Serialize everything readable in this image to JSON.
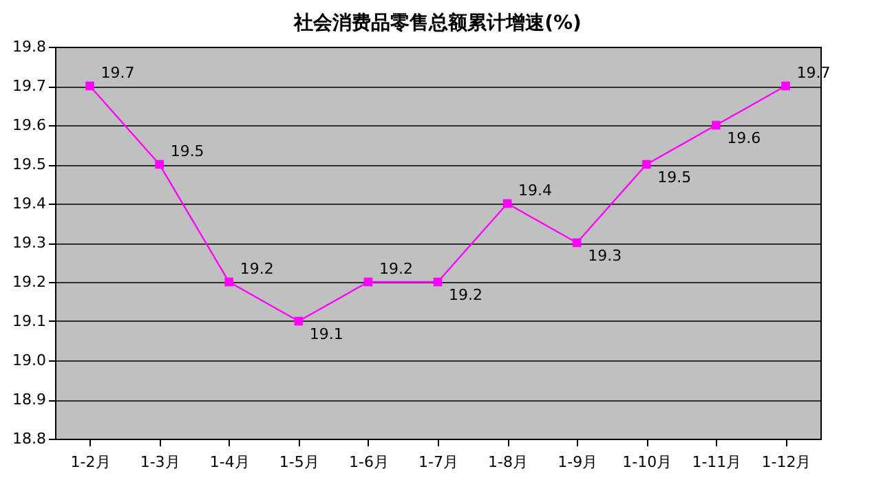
{
  "chart_data": {
    "type": "line",
    "title": "社会消费品零售总额累计增速(%)",
    "categories": [
      "1-2月",
      "1-3月",
      "1-4月",
      "1-5月",
      "1-6月",
      "1-7月",
      "1-8月",
      "1-9月",
      "1-10月",
      "1-11月",
      "1-12月"
    ],
    "series": [
      {
        "color": "#ff00ff",
        "values": [
          19.7,
          19.5,
          19.2,
          19.1,
          19.2,
          19.2,
          19.4,
          19.3,
          19.5,
          19.6,
          19.7
        ]
      }
    ],
    "ylim": [
      18.8,
      19.8
    ],
    "yticks": [
      18.8,
      18.9,
      {
        "value": 19,
        "label": "19.0"
      },
      19.1,
      19.2,
      19.3,
      19.4,
      19.5,
      19.6,
      19.7,
      19.8
    ],
    "grid": "y",
    "marker": "square",
    "line_style": "solid",
    "data_labels": true
  }
}
